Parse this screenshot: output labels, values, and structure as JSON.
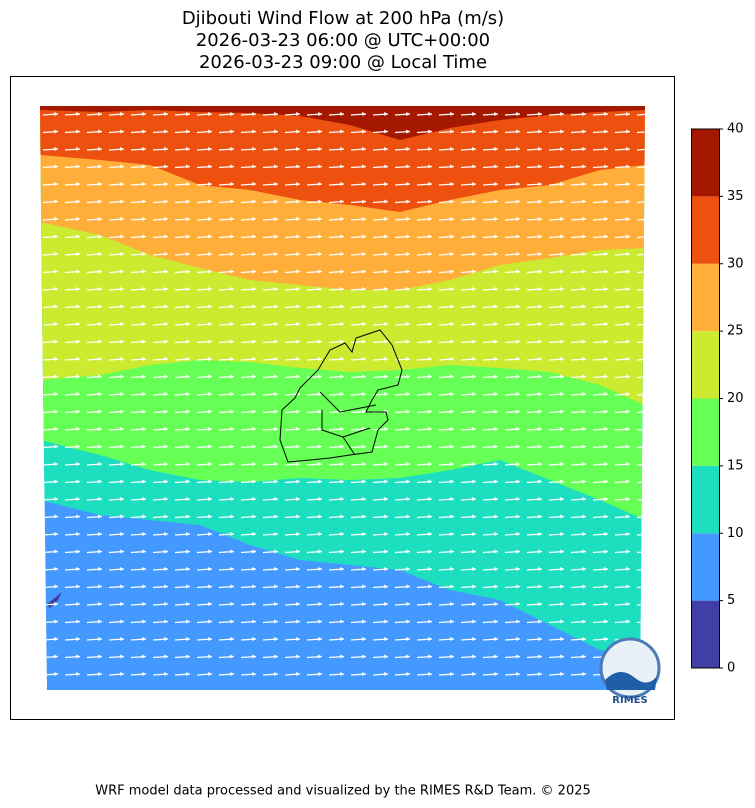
{
  "title": [
    "Djibouti Wind Flow at 200 hPa (m/s)",
    "2026-03-23 06:00 @ UTC+00:00",
    "2026-03-23 09:00 @ Local Time"
  ],
  "colorbar": {
    "levels": [
      0,
      5,
      10,
      15,
      20,
      25,
      30,
      35,
      40
    ],
    "colors": [
      "#3f3fa6",
      "#4499ff",
      "#1ddfc0",
      "#66ff55",
      "#ccea30",
      "#ffae3a",
      "#ee5010",
      "#a51800"
    ]
  },
  "logo": "RIMES",
  "footer": "WRF model data processed and visualized by the RIMES R&D Team. © 2025"
}
